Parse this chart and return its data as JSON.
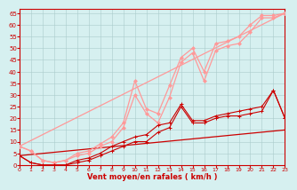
{
  "xlabel": "Vent moyen/en rafales ( km/h )",
  "bg_color": "#d6f0f0",
  "grid_color": "#aacccc",
  "xlim": [
    0,
    23
  ],
  "ylim": [
    0,
    67
  ],
  "yticks": [
    0,
    5,
    10,
    15,
    20,
    25,
    30,
    35,
    40,
    45,
    50,
    55,
    60,
    65
  ],
  "xticks": [
    0,
    1,
    2,
    3,
    4,
    5,
    6,
    7,
    8,
    9,
    10,
    11,
    12,
    13,
    14,
    15,
    16,
    17,
    18,
    19,
    20,
    21,
    22,
    23
  ],
  "x": [
    0,
    1,
    2,
    3,
    4,
    5,
    6,
    7,
    8,
    9,
    10,
    11,
    12,
    13,
    14,
    15,
    16,
    17,
    18,
    19,
    20,
    21,
    22,
    23
  ],
  "line_straight1": {
    "x0": 0,
    "x1": 23,
    "y0": 4,
    "y1": 15
  },
  "line_straight2": {
    "x0": 0,
    "x1": 23,
    "y0": 8,
    "y1": 65
  },
  "line_dark1": [
    4,
    1,
    0,
    0,
    0,
    1,
    2,
    4,
    6,
    8,
    10,
    10,
    14,
    16,
    25,
    18,
    18,
    20,
    21,
    21,
    22,
    23,
    32,
    20
  ],
  "line_dark2": [
    4,
    1,
    0,
    0,
    0,
    2,
    3,
    5,
    8,
    10,
    12,
    13,
    17,
    18,
    26,
    19,
    19,
    21,
    22,
    23,
    24,
    25,
    32,
    20
  ],
  "line_light1": [
    8,
    6,
    2,
    1,
    2,
    4,
    5,
    8,
    10,
    16,
    30,
    22,
    18,
    29,
    44,
    48,
    36,
    49,
    51,
    52,
    57,
    63,
    63,
    65
  ],
  "line_light2": [
    8,
    6,
    2,
    1,
    2,
    5,
    6,
    9,
    12,
    18,
    36,
    24,
    22,
    34,
    46,
    50,
    40,
    52,
    53,
    55,
    60,
    64,
    64,
    65
  ],
  "color_dark": "#cc0000",
  "color_light": "#ff9999"
}
